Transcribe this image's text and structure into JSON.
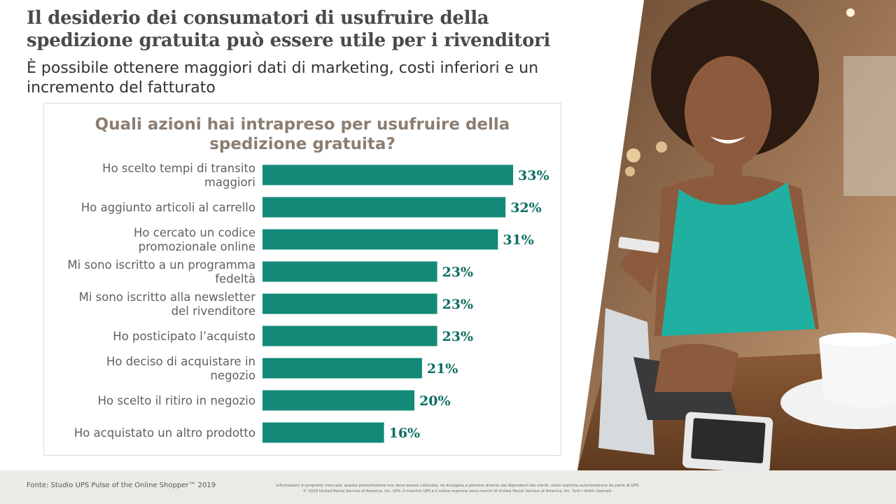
{
  "header": {
    "title": "Il desiderio dei consumatori di usufruire della spedizione gratuita può essere utile per i rivenditori",
    "subtitle": "È possibile ottenere maggiori dati di marketing, costi inferiori e un incremento del fatturato"
  },
  "chart_data": {
    "type": "bar",
    "orientation": "horizontal",
    "title": "Quali azioni hai intrapreso per usufruire della spedizione gratuita?",
    "categories": [
      [
        "Ho scelto tempi di transito",
        "maggiori"
      ],
      [
        "Ho aggiunto articoli al carrello"
      ],
      [
        "Ho cercato un codice",
        "promozionale online"
      ],
      [
        "Mi sono iscritto a un programma",
        "fedeltà"
      ],
      [
        "Mi sono iscritto alla newsletter",
        "del rivenditore"
      ],
      [
        "Ho posticipato l’acquisto"
      ],
      [
        "Ho deciso di acquistare in",
        "negozio"
      ],
      [
        "Ho scelto il ritiro in negozio"
      ],
      [
        "Ho acquistato un altro prodotto"
      ]
    ],
    "values": [
      33,
      32,
      31,
      23,
      23,
      23,
      21,
      20,
      16
    ],
    "value_suffix": "%",
    "xlim": [
      0,
      40
    ],
    "grid": false,
    "bar_color": "#138a78",
    "label_color": "#0f6e63"
  },
  "photo": {
    "description_icon": "woman-laptop-photo"
  },
  "footer": {
    "source": "Fonte: Studio UPS Pulse of the Online Shopper™ 2019",
    "legal_line1": "Informazioni di proprietà riservata: questa presentazione non deve essere utilizzata, né divulgata a persone diverse dai dipendenti dai clienti, salvo esplicita autorizzazione da parte di UPS.",
    "legal_line2": "© 2019 United Parcel Service of America, Inc. UPS, il marchio UPS e il colore marrone sono marchi di United Parcel Service of America, Inc. Tutti i diritti riservati."
  }
}
